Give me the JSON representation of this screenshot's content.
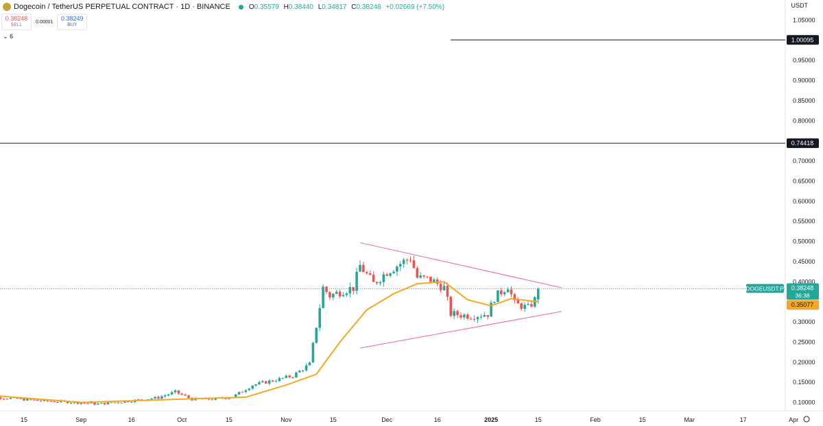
{
  "header": {
    "title": "Dogecoin / TetherUS PERPETUAL CONTRACT · 1D · BINANCE",
    "ohlc": [
      {
        "label": "O",
        "value": "0.35579"
      },
      {
        "label": "H",
        "value": "0.38440"
      },
      {
        "label": "L",
        "value": "0.34817"
      },
      {
        "label": "C",
        "value": "0.38248"
      },
      {
        "label": "",
        "value": "+0.02669 (+7.50%)"
      }
    ]
  },
  "trade": {
    "sell_price": "0.38248",
    "sell_label": "SELL",
    "spread": "0.00001",
    "buy_price": "0.38249",
    "buy_label": "BUY"
  },
  "indicator_toggle": "6",
  "currency": "USDT",
  "colors": {
    "up": "#26a69a",
    "down": "#ef5350",
    "ma": "#f5a623",
    "trend": "#f06292",
    "level": "#131722"
  },
  "chart_data": {
    "type": "candlestick",
    "ylim": [
      0.06,
      1.08
    ],
    "y_ticks": [
      "1.05000",
      "0.95000",
      "0.90000",
      "0.85000",
      "0.80000",
      "0.70000",
      "0.65000",
      "0.60000",
      "0.55000",
      "0.50000",
      "0.45000",
      "0.40000",
      "0.30000",
      "0.25000",
      "0.20000",
      "0.15000",
      "0.10000"
    ],
    "x_labels": [
      {
        "label": "15",
        "date": "2024-08-15"
      },
      {
        "label": "Sep",
        "date": "2024-09-01"
      },
      {
        "label": "16",
        "date": "2024-09-16"
      },
      {
        "label": "Oct",
        "date": "2024-10-01"
      },
      {
        "label": "15",
        "date": "2024-10-15"
      },
      {
        "label": "Nov",
        "date": "2024-11-01"
      },
      {
        "label": "15",
        "date": "2024-11-15"
      },
      {
        "label": "Dec",
        "date": "2024-12-01"
      },
      {
        "label": "16",
        "date": "2024-12-16"
      },
      {
        "label": "2025",
        "date": "2025-01-01",
        "bold": true
      },
      {
        "label": "15",
        "date": "2025-01-15"
      },
      {
        "label": "Feb",
        "date": "2025-02-01"
      },
      {
        "label": "15",
        "date": "2025-02-15"
      },
      {
        "label": "Mar",
        "date": "2025-03-01"
      },
      {
        "label": "17",
        "date": "2025-03-17"
      },
      {
        "label": "Apr",
        "date": "2025-04-01"
      }
    ],
    "price_path": [
      [
        "2024-08-08",
        0.112
      ],
      [
        "2024-08-20",
        0.104
      ],
      [
        "2024-08-28",
        0.101
      ],
      [
        "2024-09-06",
        0.096
      ],
      [
        "2024-09-15",
        0.103
      ],
      [
        "2024-09-24",
        0.112
      ],
      [
        "2024-09-29",
        0.126
      ],
      [
        "2024-10-04",
        0.108
      ],
      [
        "2024-10-10",
        0.108
      ],
      [
        "2024-10-16",
        0.113
      ],
      [
        "2024-10-22",
        0.143
      ],
      [
        "2024-10-29",
        0.156
      ],
      [
        "2024-11-03",
        0.166
      ],
      [
        "2024-11-08",
        0.195
      ],
      [
        "2024-11-10",
        0.29
      ],
      [
        "2024-11-12",
        0.385
      ],
      [
        "2024-11-14",
        0.365
      ],
      [
        "2024-11-18",
        0.378
      ],
      [
        "2024-11-21",
        0.385
      ],
      [
        "2024-11-23",
        0.44
      ],
      [
        "2024-11-27",
        0.395
      ],
      [
        "2024-12-01",
        0.425
      ],
      [
        "2024-12-04",
        0.44
      ],
      [
        "2024-12-08",
        0.46
      ],
      [
        "2024-12-10",
        0.41
      ],
      [
        "2024-12-14",
        0.405
      ],
      [
        "2024-12-18",
        0.385
      ],
      [
        "2024-12-20",
        0.32
      ],
      [
        "2024-12-26",
        0.315
      ],
      [
        "2024-12-31",
        0.32
      ],
      [
        "2025-01-02",
        0.36
      ],
      [
        "2025-01-06",
        0.39
      ],
      [
        "2025-01-08",
        0.345
      ],
      [
        "2025-01-12",
        0.335
      ],
      [
        "2025-01-14",
        0.355
      ],
      [
        "2025-01-15",
        0.38248
      ]
    ],
    "ma_path": [
      [
        "2024-08-01",
        0.12
      ],
      [
        "2024-09-01",
        0.1
      ],
      [
        "2024-10-01",
        0.108
      ],
      [
        "2024-10-20",
        0.113
      ],
      [
        "2024-11-01",
        0.143
      ],
      [
        "2024-11-10",
        0.17
      ],
      [
        "2024-11-17",
        0.25
      ],
      [
        "2024-11-25",
        0.33
      ],
      [
        "2024-12-03",
        0.37
      ],
      [
        "2024-12-10",
        0.395
      ],
      [
        "2024-12-18",
        0.4
      ],
      [
        "2024-12-25",
        0.355
      ],
      [
        "2025-01-01",
        0.34
      ],
      [
        "2025-01-07",
        0.358
      ],
      [
        "2025-01-13",
        0.352
      ],
      [
        "2025-01-15",
        0.351
      ]
    ],
    "trendlines": [
      {
        "from": [
          "2024-11-23",
          0.497
        ],
        "to": [
          "2025-01-22",
          0.385
        ]
      },
      {
        "from": [
          "2024-11-23",
          0.235
        ],
        "to": [
          "2025-01-22",
          0.326
        ]
      }
    ],
    "levels": [
      {
        "value": 1.00095,
        "label": "1.00095",
        "from_date": "2024-12-20"
      },
      {
        "value": 0.74418,
        "label": "0.74418",
        "from_date": null
      }
    ],
    "last_price": {
      "symbol": "DOGEUSDT.P",
      "value": 0.38248,
      "label": "0.38248",
      "countdown": "36:38"
    },
    "ma_last": {
      "value": 0.35077,
      "label": "0.35077"
    }
  }
}
